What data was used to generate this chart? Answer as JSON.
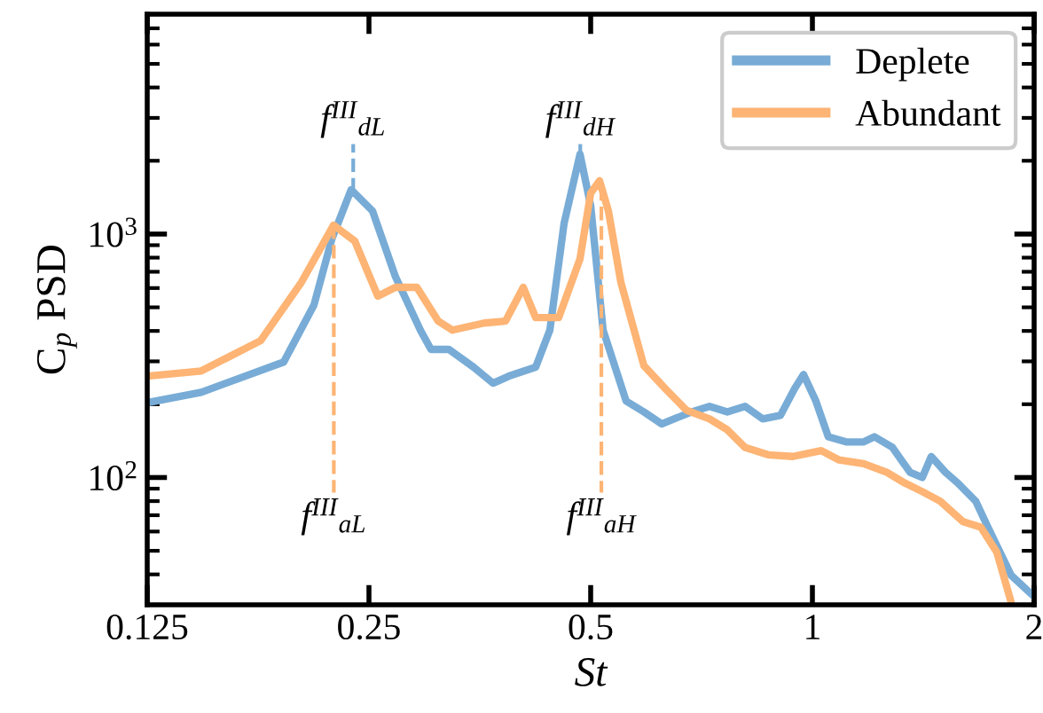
{
  "chart_data": {
    "type": "line",
    "xlabel": "St",
    "ylabel": "C$_{p}$ PSD",
    "log": "xy",
    "xlim": [
      0.125,
      2
    ],
    "ylim": [
      30,
      8000
    ],
    "xticks": [
      0.125,
      0.25,
      0.5,
      1,
      2
    ],
    "yticks": [
      {
        "value": 100,
        "label": "10$^{2}$"
      },
      {
        "value": 1000,
        "label": "10$^{3}$"
      }
    ],
    "grid": false,
    "legend": "top right",
    "line_style": "solid",
    "marker": "none",
    "series": [
      {
        "name": "Deplete",
        "color": "#78acd6",
        "x": [
          0.125,
          0.148,
          0.1915,
          0.2105,
          0.2225,
          0.2365,
          0.2528,
          0.2716,
          0.2936,
          0.3035,
          0.3209,
          0.3467,
          0.3685,
          0.3874,
          0.421,
          0.4401,
          0.4601,
          0.4836,
          0.5,
          0.5198,
          0.5586,
          0.5905,
          0.6242,
          0.6489,
          0.6859,
          0.725,
          0.7664,
          0.81,
          0.8562,
          0.905,
          0.946,
          0.9726,
          1.011,
          1.051,
          1.111,
          1.174,
          1.214,
          1.284,
          1.357,
          1.41,
          1.45,
          1.516,
          1.575,
          1.666,
          1.731,
          1.861,
          2.0
        ],
        "values": [
          203,
          224,
          298,
          511,
          950,
          1522,
          1244,
          668,
          403,
          336,
          336,
          284,
          244,
          261,
          284,
          403,
          1106,
          2128,
          1309,
          403,
          206,
          186,
          166,
          174,
          186,
          196,
          186,
          196,
          174,
          180,
          232,
          265,
          206,
          147,
          140,
          140,
          147,
          133,
          105,
          100,
          122,
          105,
          95,
          80,
          62.5,
          39.7,
          32.4
        ]
      },
      {
        "name": "Abundant",
        "color": "#fdb474",
        "x": [
          0.125,
          0.148,
          0.1782,
          0.2025,
          0.2238,
          0.2392,
          0.257,
          0.2716,
          0.2904,
          0.3104,
          0.3245,
          0.3585,
          0.3831,
          0.405,
          0.421,
          0.4525,
          0.4836,
          0.5,
          0.514,
          0.5285,
          0.5494,
          0.5905,
          0.6311,
          0.6746,
          0.725,
          0.7664,
          0.81,
          0.8705,
          0.9408,
          1.028,
          1.087,
          1.174,
          1.262,
          1.334,
          1.41,
          1.491,
          1.602,
          1.693,
          1.78,
          1.861
        ],
        "values": [
          261,
          274,
          365,
          635,
          1088,
          935,
          556,
          604,
          604,
          439,
          403,
          431,
          439,
          604,
          454,
          454,
          791,
          1472,
          1656,
          1244,
          635,
          288,
          232,
          189,
          174,
          157,
          133,
          124,
          122,
          129,
          118,
          114,
          105,
          95,
          87.5,
          80,
          65.8,
          62.5,
          49.3,
          30.8
        ]
      }
    ],
    "ref_lines": [
      {
        "axis": "x",
        "value": 0.238,
        "label": "f$^{III}$$_{dL}$",
        "color": "#78acd6",
        "line_style": "dashed"
      },
      {
        "axis": "x",
        "value": 0.224,
        "label": "f$^{III}$$_{aL}$",
        "color": "#fdb474",
        "line_style": "dashed"
      },
      {
        "axis": "x",
        "value": 0.484,
        "label": "f$^{III}$$_{dH}$",
        "color": "#78acd6",
        "line_style": "dashed"
      },
      {
        "axis": "x",
        "value": 0.517,
        "label": "f$^{III}$$_{aH}$",
        "color": "#fdb474",
        "line_style": "dashed"
      }
    ]
  }
}
